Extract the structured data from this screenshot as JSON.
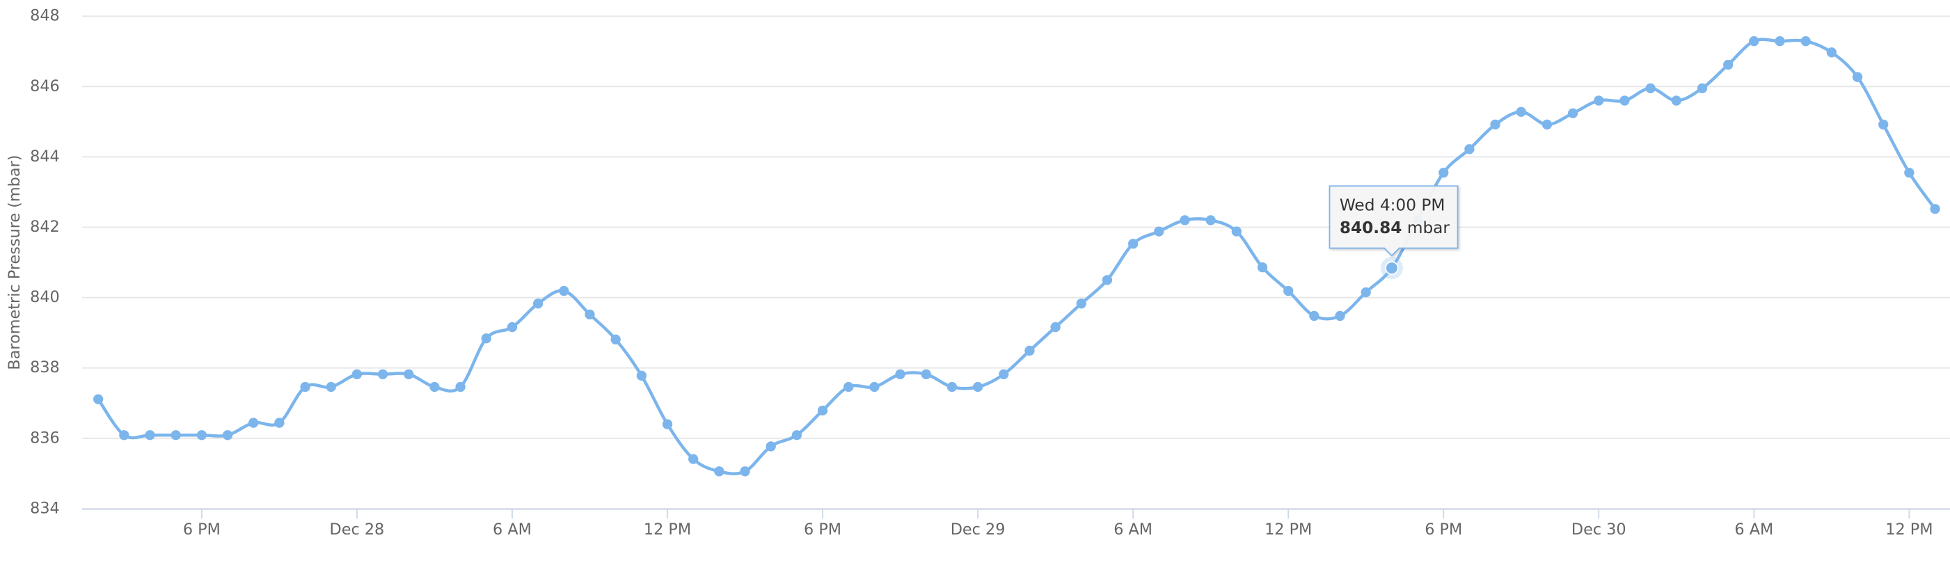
{
  "chart_data": {
    "type": "line",
    "y_label": "Barometric Pressure (mbar)",
    "x": [
      "Dec 27 2 PM",
      "Dec 27 3 PM",
      "Dec 27 4 PM",
      "Dec 27 5 PM",
      "Dec 27 6 PM",
      "Dec 27 7 PM",
      "Dec 27 8 PM",
      "Dec 27 9 PM",
      "Dec 27 10 PM",
      "Dec 27 11 PM",
      "Dec 28 12 AM",
      "Dec 28 1 AM",
      "Dec 28 2 AM",
      "Dec 28 3 AM",
      "Dec 28 4 AM",
      "Dec 28 5 AM",
      "Dec 28 6 AM",
      "Dec 28 7 AM",
      "Dec 28 8 AM",
      "Dec 28 9 AM",
      "Dec 28 10 AM",
      "Dec 28 11 AM",
      "Dec 28 12 PM",
      "Dec 28 1 PM",
      "Dec 28 2 PM",
      "Dec 28 3 PM",
      "Dec 28 4 PM",
      "Dec 28 5 PM",
      "Dec 28 6 PM",
      "Dec 28 7 PM",
      "Dec 28 8 PM",
      "Dec 28 9 PM",
      "Dec 28 10 PM",
      "Dec 28 11 PM",
      "Dec 29 12 AM",
      "Dec 29 1 AM",
      "Dec 29 2 AM",
      "Dec 29 3 AM",
      "Dec 29 4 AM",
      "Dec 29 5 AM",
      "Dec 29 6 AM",
      "Dec 29 7 AM",
      "Dec 29 8 AM",
      "Dec 29 9 AM",
      "Dec 29 10 AM",
      "Dec 29 11 AM",
      "Dec 29 12 PM",
      "Dec 29 1 PM",
      "Dec 29 2 PM",
      "Dec 29 3 PM",
      "Dec 29 4 PM",
      "Dec 29 5 PM",
      "Dec 29 6 PM",
      "Dec 29 7 PM",
      "Dec 29 8 PM",
      "Dec 29 9 PM",
      "Dec 29 10 PM",
      "Dec 29 11 PM",
      "Dec 30 12 AM",
      "Dec 30 1 AM",
      "Dec 30 2 AM",
      "Dec 30 3 AM",
      "Dec 30 4 AM",
      "Dec 30 5 AM",
      "Dec 30 6 AM",
      "Dec 30 7 AM",
      "Dec 30 8 AM",
      "Dec 30 9 AM",
      "Dec 30 10 AM",
      "Dec 30 11 AM",
      "Dec 30 12 PM",
      "Dec 30 1 PM"
    ],
    "series": [
      {
        "name": "Barometric Pressure",
        "color": "#7cb5ec",
        "values": [
          837.11,
          836.09,
          836.09,
          836.09,
          836.09,
          836.09,
          836.44,
          836.44,
          837.46,
          837.46,
          837.82,
          837.82,
          837.82,
          837.46,
          837.46,
          838.84,
          839.16,
          839.83,
          840.19,
          839.52,
          838.81,
          837.78,
          836.4,
          835.41,
          835.06,
          835.06,
          835.77,
          836.09,
          836.79,
          837.46,
          837.46,
          837.82,
          837.82,
          837.46,
          837.46,
          837.82,
          838.49,
          839.16,
          839.83,
          840.5,
          841.53,
          841.88,
          842.2,
          842.2,
          841.88,
          840.86,
          840.19,
          839.48,
          839.48,
          840.15,
          840.84,
          842.2,
          843.55,
          844.22,
          844.92,
          845.28,
          844.92,
          845.24,
          845.6,
          845.6,
          845.95,
          845.6,
          845.95,
          846.62,
          847.29,
          847.29,
          847.29,
          846.97,
          846.27,
          844.92,
          843.55,
          842.52
        ]
      }
    ],
    "xticks": [
      {
        "value": "Dec 27 6 PM",
        "label": "6 PM"
      },
      {
        "value": "Dec 28 12 AM",
        "label": "Dec 28"
      },
      {
        "value": "Dec 28 6 AM",
        "label": "6 AM"
      },
      {
        "value": "Dec 28 12 PM",
        "label": "12 PM"
      },
      {
        "value": "Dec 28 6 PM",
        "label": "6 PM"
      },
      {
        "value": "Dec 29 12 AM",
        "label": "Dec 29"
      },
      {
        "value": "Dec 29 6 AM",
        "label": "6 AM"
      },
      {
        "value": "Dec 29 12 PM",
        "label": "12 PM"
      },
      {
        "value": "Dec 29 6 PM",
        "label": "6 PM"
      },
      {
        "value": "Dec 30 12 AM",
        "label": "Dec 30"
      },
      {
        "value": "Dec 30 6 AM",
        "label": "6 AM"
      },
      {
        "value": "Dec 30 12 PM",
        "label": "12 PM"
      }
    ],
    "ylim": [
      834,
      848
    ],
    "yticks": [
      834,
      836,
      838,
      840,
      842,
      844,
      846,
      848
    ],
    "grid": true,
    "tooltip": {
      "x": "Dec 29 4 PM",
      "label": "Wed 4:00 PM",
      "value": 840.84,
      "unit": "mbar"
    }
  }
}
